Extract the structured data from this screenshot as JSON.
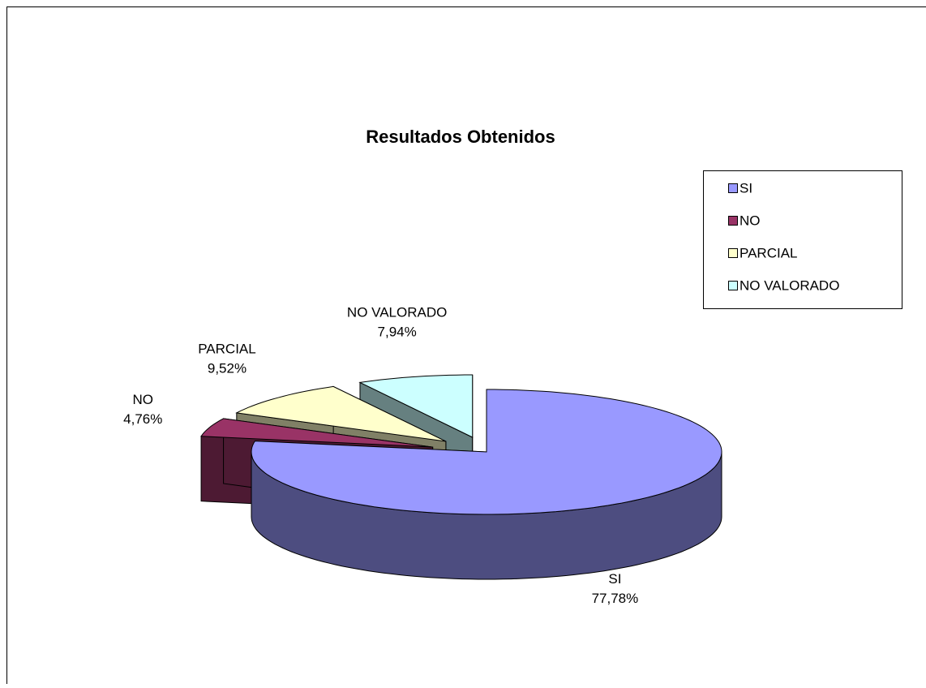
{
  "chart_data": {
    "type": "pie3d",
    "title": "Resultados Obtenidos",
    "categories": [
      "SI",
      "NO",
      "PARCIAL",
      "NO VALORADO"
    ],
    "values": [
      77.78,
      4.76,
      9.52,
      7.94
    ],
    "value_labels": [
      "77,78%",
      "4,76%",
      "9,52%",
      "7,94%"
    ],
    "colors": [
      "#9999ff",
      "#993366",
      "#ffffcc",
      "#ccffff"
    ],
    "legend": "right"
  }
}
